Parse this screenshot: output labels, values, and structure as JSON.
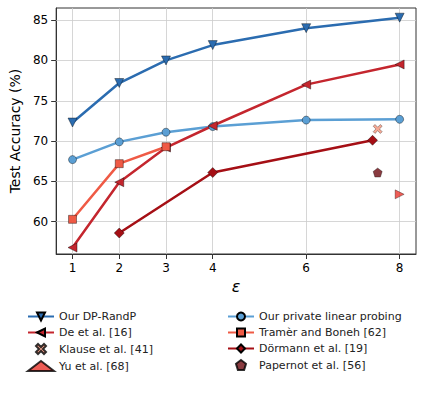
{
  "chart_data": {
    "type": "line",
    "x_label": "ε",
    "y_label": "Test Accuracy (%)",
    "xlim": [
      0.65,
      8.35
    ],
    "ylim": [
      56,
      86.5
    ],
    "xticks": [
      1,
      2,
      3,
      4,
      6,
      8
    ],
    "yticks": [
      60,
      65,
      70,
      75,
      80,
      85
    ],
    "grid": true,
    "legend": "bottom",
    "series": [
      {
        "name": "Our DP-RandP",
        "color": "#2b6cb0",
        "marker": "triangle_down",
        "x": [
          1,
          2,
          3,
          4,
          6,
          8
        ],
        "values": [
          72.3,
          77.2,
          80.0,
          81.9,
          84.0,
          85.3
        ]
      },
      {
        "name": "Our private linear probing",
        "color": "#5b9fd4",
        "marker": "circle",
        "x": [
          1,
          2,
          3,
          4,
          6,
          8
        ],
        "values": [
          67.7,
          69.9,
          71.1,
          71.8,
          72.6,
          72.7
        ]
      },
      {
        "name": "De et al. [16]",
        "color": "#c4262e",
        "marker": "triangle_left",
        "x": [
          1,
          2,
          3,
          4,
          6,
          8
        ],
        "values": [
          56.8,
          64.9,
          69.2,
          71.9,
          77.0,
          79.5
        ]
      },
      {
        "name": "Tramèr and Boneh [62]",
        "color": "#ef5a45",
        "marker": "square",
        "x": [
          1,
          2,
          3
        ],
        "values": [
          60.3,
          67.2,
          69.3
        ]
      },
      {
        "name": "Klause et al. [41]",
        "color": "#f4937a",
        "marker": "x",
        "type": "scatter",
        "x": [
          7.53
        ],
        "values": [
          71.5
        ]
      },
      {
        "name": "Dörmann et al. [19]",
        "color": "#a50f15",
        "marker": "diamond",
        "x": [
          2,
          4,
          7.42
        ],
        "values": [
          58.6,
          66.1,
          70.1
        ]
      },
      {
        "name": "Yu et al. [68]",
        "color": "#e8352c",
        "marker": "triangle_right",
        "type": "scatter",
        "x": [
          8
        ],
        "values": [
          63.4
        ]
      },
      {
        "name": "Papernot et al. [56]",
        "color": "#6b0a10",
        "marker": "pentagon",
        "type": "scatter",
        "x": [
          7.53
        ],
        "values": [
          66.1
        ]
      }
    ]
  }
}
